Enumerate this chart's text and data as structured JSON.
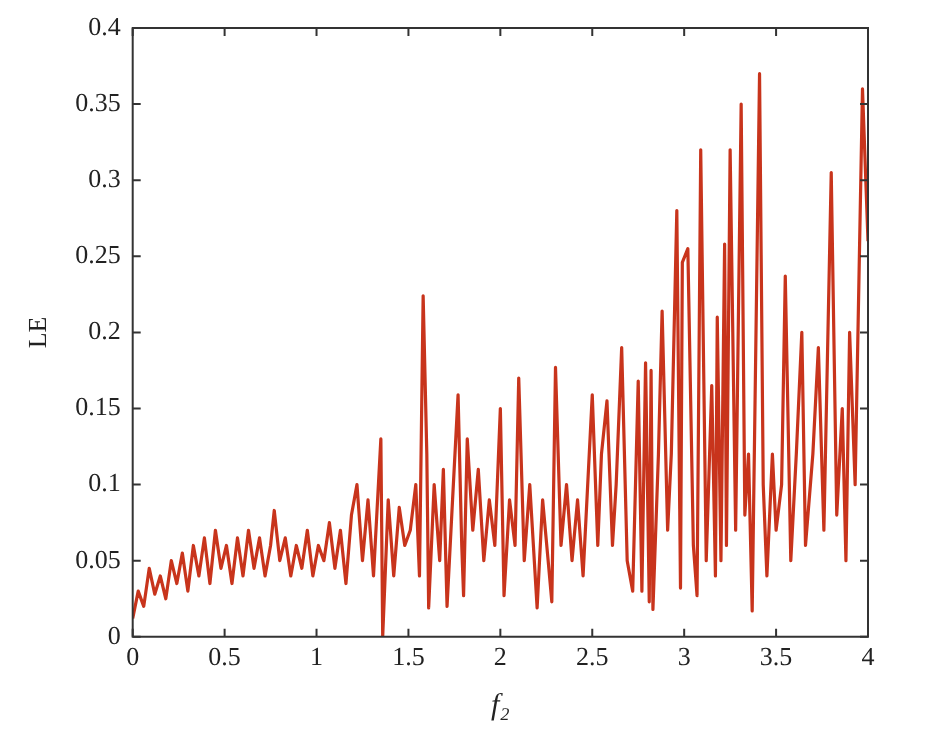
{
  "chart_data": {
    "type": "line",
    "xlabel": "f₂",
    "ylabel": "LE",
    "xlim": [
      0,
      4
    ],
    "xticks": [
      0,
      0.5,
      1,
      1.5,
      2,
      2.5,
      3,
      3.5,
      4
    ],
    "ylim": [
      0,
      0.4
    ],
    "yticks": [
      0,
      0.05,
      0.1,
      0.15,
      0.2,
      0.25,
      0.3,
      0.35,
      0.4
    ],
    "grid": false,
    "legend": false,
    "marker": "none",
    "line_style": "solid",
    "series": [
      {
        "color": "#c8341c",
        "x": [
          0,
          0.03,
          0.06,
          0.09,
          0.12,
          0.15,
          0.18,
          0.21,
          0.24,
          0.27,
          0.3,
          0.33,
          0.36,
          0.39,
          0.42,
          0.45,
          0.48,
          0.51,
          0.54,
          0.57,
          0.6,
          0.63,
          0.66,
          0.69,
          0.72,
          0.75,
          0.77,
          0.8,
          0.83,
          0.86,
          0.89,
          0.92,
          0.95,
          0.98,
          1.01,
          1.04,
          1.07,
          1.1,
          1.13,
          1.16,
          1.19,
          1.22,
          1.25,
          1.28,
          1.31,
          1.35,
          1.36,
          1.39,
          1.42,
          1.45,
          1.48,
          1.51,
          1.54,
          1.56,
          1.58,
          1.6,
          1.61,
          1.64,
          1.67,
          1.69,
          1.71,
          1.74,
          1.77,
          1.79,
          1.8,
          1.82,
          1.85,
          1.88,
          1.91,
          1.94,
          1.97,
          2,
          2.02,
          2.05,
          2.08,
          2.1,
          2.13,
          2.16,
          2.2,
          2.23,
          2.26,
          2.28,
          2.3,
          2.33,
          2.36,
          2.39,
          2.42,
          2.45,
          2.5,
          2.53,
          2.55,
          2.58,
          2.61,
          2.63,
          2.66,
          2.69,
          2.72,
          2.75,
          2.77,
          2.79,
          2.81,
          2.82,
          2.83,
          2.86,
          2.88,
          2.91,
          2.93,
          2.96,
          2.98,
          2.99,
          3.02,
          3.05,
          3.07,
          3.09,
          3.12,
          3.15,
          3.17,
          3.18,
          3.2,
          3.22,
          3.23,
          3.25,
          3.28,
          3.31,
          3.33,
          3.35,
          3.37,
          3.41,
          3.43,
          3.45,
          3.48,
          3.5,
          3.53,
          3.55,
          3.58,
          3.61,
          3.64,
          3.66,
          3.7,
          3.73,
          3.76,
          3.8,
          3.83,
          3.86,
          3.88,
          3.9,
          3.93,
          3.97,
          4
        ],
        "values": [
          0.012,
          0.03,
          0.02,
          0.045,
          0.028,
          0.04,
          0.025,
          0.05,
          0.035,
          0.055,
          0.03,
          0.06,
          0.04,
          0.065,
          0.035,
          0.07,
          0.045,
          0.06,
          0.035,
          0.065,
          0.04,
          0.07,
          0.045,
          0.065,
          0.04,
          0.06,
          0.083,
          0.05,
          0.065,
          0.04,
          0.06,
          0.045,
          0.07,
          0.04,
          0.06,
          0.05,
          0.075,
          0.045,
          0.07,
          0.035,
          0.08,
          0.1,
          0.05,
          0.09,
          0.04,
          0.13,
          0,
          0.09,
          0.04,
          0.085,
          0.06,
          0.07,
          0.1,
          0.04,
          0.224,
          0.12,
          0.019,
          0.1,
          0.05,
          0.11,
          0.02,
          0.09,
          0.159,
          0.06,
          0.027,
          0.13,
          0.07,
          0.11,
          0.05,
          0.09,
          0.06,
          0.15,
          0.027,
          0.09,
          0.06,
          0.17,
          0.05,
          0.1,
          0.019,
          0.09,
          0.05,
          0.023,
          0.177,
          0.06,
          0.1,
          0.05,
          0.09,
          0.04,
          0.159,
          0.06,
          0.12,
          0.155,
          0.06,
          0.1,
          0.19,
          0.05,
          0.03,
          0.168,
          0.03,
          0.18,
          0.023,
          0.175,
          0.018,
          0.12,
          0.214,
          0.07,
          0.12,
          0.28,
          0.032,
          0.246,
          0.255,
          0.06,
          0.027,
          0.32,
          0.05,
          0.165,
          0.04,
          0.21,
          0.05,
          0.258,
          0.06,
          0.32,
          0.07,
          0.35,
          0.08,
          0.12,
          0.017,
          0.37,
          0.1,
          0.04,
          0.12,
          0.07,
          0.1,
          0.237,
          0.05,
          0.12,
          0.2,
          0.06,
          0.12,
          0.19,
          0.07,
          0.305,
          0.08,
          0.15,
          0.05,
          0.2,
          0.1,
          0.36,
          0.26
        ]
      }
    ]
  }
}
